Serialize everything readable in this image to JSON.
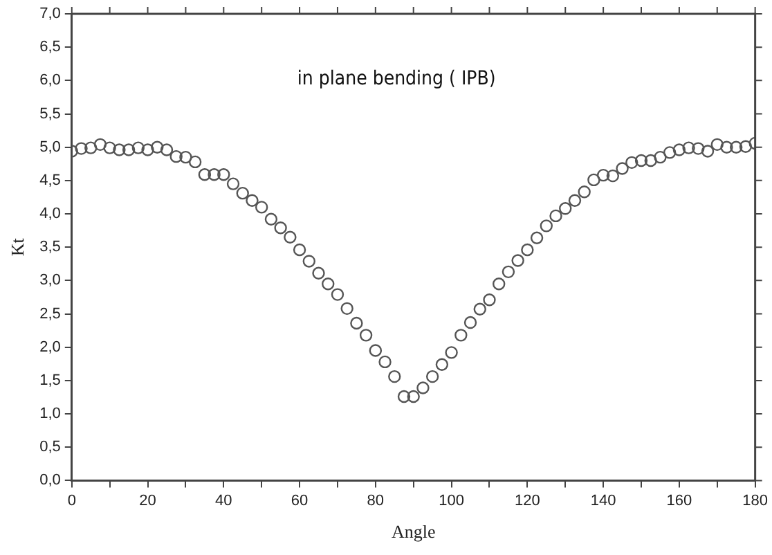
{
  "chart_data": {
    "type": "scatter",
    "xlabel": "Angle",
    "ylabel": "Kt",
    "annotations": [
      "in plane bending ( IPB)"
    ],
    "xlim": [
      0,
      180
    ],
    "xticks": [
      0,
      {
        "value": 10,
        "label": null
      },
      20,
      {
        "value": 30,
        "label": null
      },
      40,
      {
        "value": 50,
        "label": null
      },
      60,
      {
        "value": 70,
        "label": null
      },
      80,
      {
        "value": 90,
        "label": null
      },
      100,
      {
        "value": 110,
        "label": null
      },
      120,
      {
        "value": 130,
        "label": null
      },
      140,
      {
        "value": 150,
        "label": null
      },
      160,
      {
        "value": 170,
        "label": null
      },
      180
    ],
    "ylim": [
      0,
      7
    ],
    "yticks": [
      {
        "value": 0,
        "label": "0,0"
      },
      {
        "value": 0.5,
        "label": "0,5"
      },
      {
        "value": 1,
        "label": "1,0"
      },
      {
        "value": 1.5,
        "label": "1,5"
      },
      {
        "value": 2,
        "label": "2,0"
      },
      {
        "value": 2.5,
        "label": "2,5"
      },
      {
        "value": 3,
        "label": "3,0"
      },
      {
        "value": 3.5,
        "label": "3,5"
      },
      {
        "value": 4,
        "label": "4,0"
      },
      {
        "value": 4.5,
        "label": "4,5"
      },
      {
        "value": 5,
        "label": "5,0"
      },
      {
        "value": 5.5,
        "label": "5,5"
      },
      {
        "value": 6,
        "label": "6,0"
      },
      {
        "value": 6.5,
        "label": "6,5"
      },
      {
        "value": 7,
        "label": "7,0"
      }
    ],
    "grid": false,
    "legend": false,
    "marker": "circle",
    "series": [
      {
        "color": "#555555",
        "x": [
          0,
          2.5,
          5,
          7.5,
          10,
          12.5,
          15,
          17.5,
          20,
          22.5,
          25,
          27.5,
          30,
          32.5,
          35,
          37.5,
          40,
          42.5,
          45,
          47.5,
          50,
          52.5,
          55,
          57.5,
          60,
          62.5,
          65,
          67.5,
          70,
          72.5,
          75,
          77.5,
          80,
          82.5,
          85,
          87.5,
          90,
          92.5,
          95,
          97.5,
          100,
          102.5,
          105,
          107.5,
          110,
          112.5,
          115,
          117.5,
          120,
          122.5,
          125,
          127.5,
          130,
          132.5,
          135,
          137.5,
          140,
          142.5,
          145,
          147.5,
          150,
          152.5,
          155,
          157.5,
          160,
          162.5,
          165,
          167.5,
          170,
          172.5,
          175,
          177.5,
          180
        ],
        "values": [
          4.94,
          4.98,
          4.99,
          5.04,
          4.99,
          4.96,
          4.96,
          4.99,
          4.96,
          5.0,
          4.96,
          4.86,
          4.85,
          4.78,
          4.59,
          4.59,
          4.59,
          4.45,
          4.31,
          4.2,
          4.1,
          3.92,
          3.79,
          3.65,
          3.46,
          3.29,
          3.11,
          2.95,
          2.79,
          2.58,
          2.36,
          2.18,
          1.95,
          1.78,
          1.56,
          1.26,
          1.26,
          1.39,
          1.56,
          1.74,
          1.92,
          2.18,
          2.37,
          2.57,
          2.71,
          2.95,
          3.13,
          3.3,
          3.46,
          3.64,
          3.82,
          3.97,
          4.08,
          4.2,
          4.33,
          4.51,
          4.58,
          4.57,
          4.68,
          4.77,
          4.8,
          4.8,
          4.85,
          4.92,
          4.96,
          4.99,
          4.98,
          4.94,
          5.04,
          5.0,
          5.0,
          5.01,
          5.06
        ]
      }
    ]
  }
}
